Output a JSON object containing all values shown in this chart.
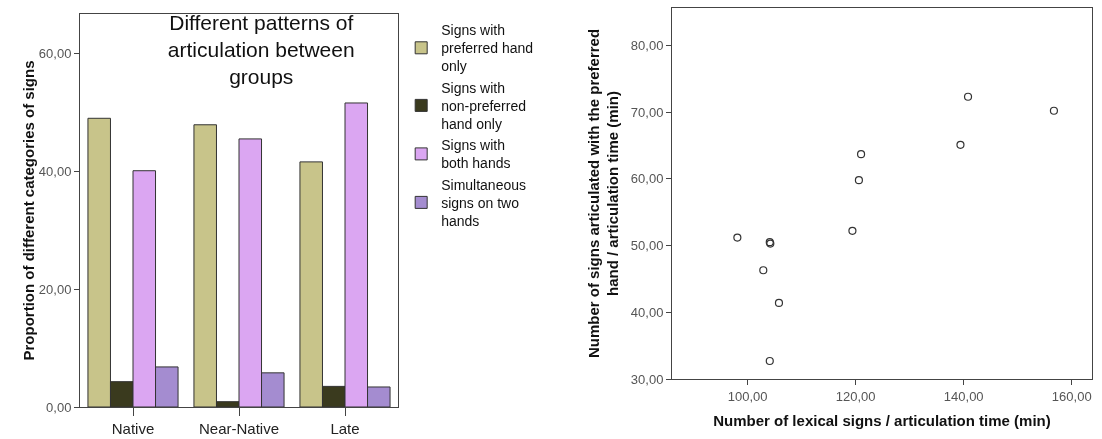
{
  "chart_data": [
    {
      "type": "bar",
      "title": "Different patterns of articulation between groups",
      "ylabel": "Proportion of different categories of signs",
      "categories": [
        "Native",
        "Near-Native",
        "Late"
      ],
      "series": [
        {
          "name": "Signs with preferred hand only",
          "color": "#c8c48a",
          "values": [
            49.0,
            47.9,
            41.6
          ]
        },
        {
          "name": "Signs with non-preferred hand only",
          "color": "#3a3a1e",
          "values": [
            4.3,
            0.9,
            3.5
          ]
        },
        {
          "name": "Signs with both hands",
          "color": "#dba6f2",
          "values": [
            40.1,
            45.5,
            51.6
          ]
        },
        {
          "name": "Simultaneous signs on two hands",
          "color": "#a48cd0",
          "values": [
            6.8,
            5.8,
            3.4
          ]
        }
      ],
      "ylim": [
        0,
        66.7
      ],
      "yticks": [
        {
          "value": 0,
          "label": "0,00"
        },
        {
          "value": 20,
          "label": "20,00"
        },
        {
          "value": 40,
          "label": "40,00"
        },
        {
          "value": 60,
          "label": "60,00"
        }
      ],
      "grid": false,
      "legend": "right"
    },
    {
      "type": "scatter",
      "xlabel": "Number of lexical signs / articulation time (min)",
      "ylabel": "Number of signs articulated with the preferred hand / articulation time (min)",
      "x": [
        98.1,
        104.1,
        104.2,
        102.9,
        105.8,
        104.1,
        119.4,
        120.6,
        121.0,
        139.4,
        140.8,
        156.7
      ],
      "values": [
        51.2,
        50.5,
        50.3,
        46.3,
        41.4,
        32.7,
        52.2,
        59.8,
        63.7,
        65.1,
        72.3,
        70.2
      ],
      "color": "#333333",
      "marker": "circle",
      "xlim": [
        86,
        163.75
      ],
      "xticks": [
        {
          "value": 100,
          "label": "100,00"
        },
        {
          "value": 120,
          "label": "120,00"
        },
        {
          "value": 140,
          "label": "140,00"
        },
        {
          "value": 160,
          "label": "160,00"
        }
      ],
      "ylim": [
        30,
        85.6
      ],
      "yticks": [
        {
          "value": 30,
          "label": "30,00"
        },
        {
          "value": 40,
          "label": "40,00"
        },
        {
          "value": 50,
          "label": "50,00"
        },
        {
          "value": 60,
          "label": "60,00"
        },
        {
          "value": 70,
          "label": "70,00"
        },
        {
          "value": 80,
          "label": "80,00"
        }
      ],
      "grid": false,
      "legend": false
    }
  ]
}
